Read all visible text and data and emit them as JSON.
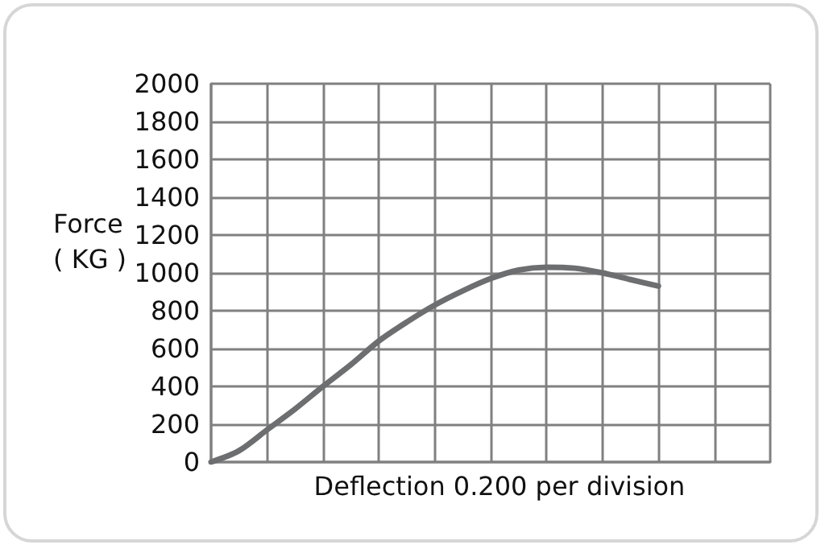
{
  "chart_data": {
    "type": "line",
    "xlabel": "Deflection 0.200 per division",
    "ylabel": "Force\n( KG )",
    "categories": [
      null,
      null,
      null,
      null,
      null,
      null,
      null,
      null,
      null,
      null,
      null,
      null,
      null,
      null,
      null,
      null,
      null,
      null,
      null,
      null,
      null
    ],
    "series": [
      {
        "color": "#6d6e70",
        "values": [
          0,
          60,
          170,
          280,
          400,
          515,
          640,
          740,
          830,
          905,
          970,
          1015,
          1030,
          1025,
          1000,
          965,
          930,
          null,
          null,
          null,
          null
        ]
      }
    ],
    "ylim": [
      0,
      2000
    ],
    "yticks": [
      0,
      200,
      400,
      600,
      800,
      1000,
      1200,
      1400,
      1600,
      1800,
      2000
    ],
    "grid": true,
    "tick_labels": "y",
    "marker": "none",
    "line_style": "solid"
  }
}
